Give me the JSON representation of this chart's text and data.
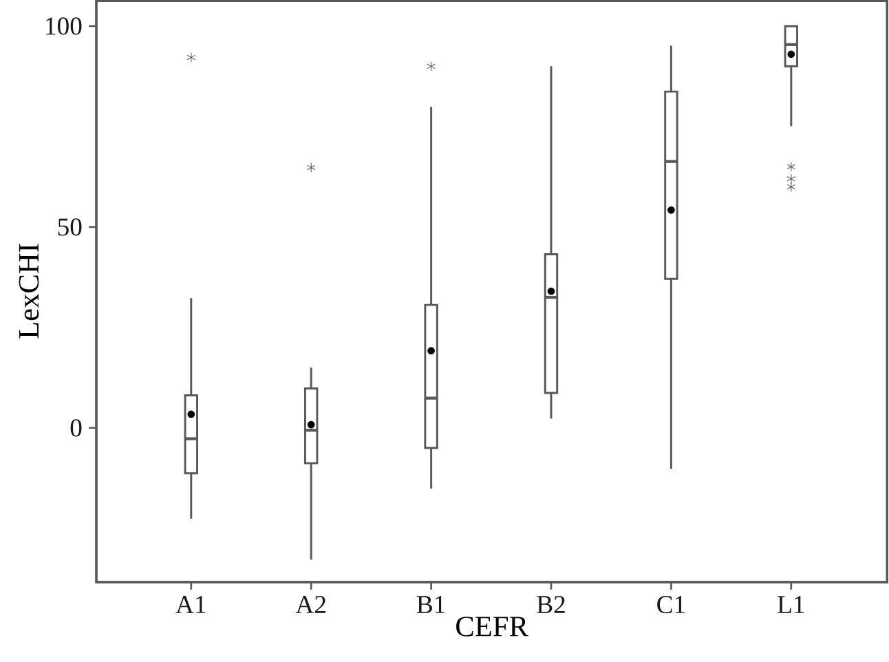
{
  "chart_data": {
    "type": "box",
    "xlabel": "CEFR",
    "ylabel": "LexCHI",
    "categories": [
      "A1",
      "A2",
      "B1",
      "B2",
      "C1",
      "L1"
    ],
    "ylim": [
      -38.4,
      106.5
    ],
    "yticks": [
      0,
      50,
      100
    ],
    "series": [
      {
        "color": "#595959",
        "boxes": [
          {
            "low": -22.6,
            "q1": -11.3,
            "median": -2.7,
            "q3": 8.1,
            "high": 32.3,
            "mean": 3.4,
            "outliers": [
              92.2
            ]
          },
          {
            "low": -32.8,
            "q1": -8.8,
            "median": -0.6,
            "q3": 9.8,
            "high": 15.0,
            "mean": 0.8,
            "outliers": [
              64.8
            ]
          },
          {
            "low": -15.1,
            "q1": -5.0,
            "median": 7.4,
            "q3": 30.6,
            "high": 79.9,
            "mean": 19.2,
            "outliers": [
              90.0
            ]
          },
          {
            "low": 2.3,
            "q1": 8.7,
            "median": 32.5,
            "q3": 43.2,
            "high": 90.0,
            "mean": 34.0
          },
          {
            "low": -10.2,
            "q1": 37.1,
            "median": 66.3,
            "q3": 83.7,
            "high": 95.1,
            "mean": 54.2
          },
          {
            "low": 75.1,
            "q1": 90.0,
            "median": 95.4,
            "q3": 100.0,
            "high": 100.0,
            "mean": 93.0,
            "outliers": [
              65.0,
              62.0,
              60.0
            ]
          }
        ]
      }
    ]
  }
}
